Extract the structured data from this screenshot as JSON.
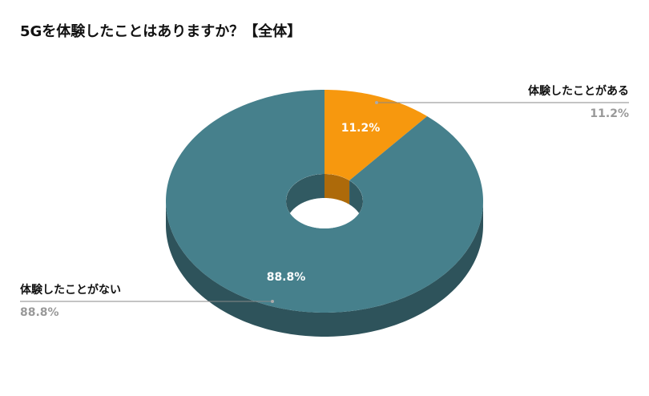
{
  "chart_data": {
    "type": "pie",
    "title": "5Gを体験したことはありますか？【全体】",
    "categories": [
      "体験したことがある",
      "体験したことがない"
    ],
    "values": [
      11.2,
      88.8
    ],
    "value_labels": [
      "11.2%",
      "88.8%"
    ],
    "colors": [
      "#f7980e",
      "#46808c"
    ]
  }
}
